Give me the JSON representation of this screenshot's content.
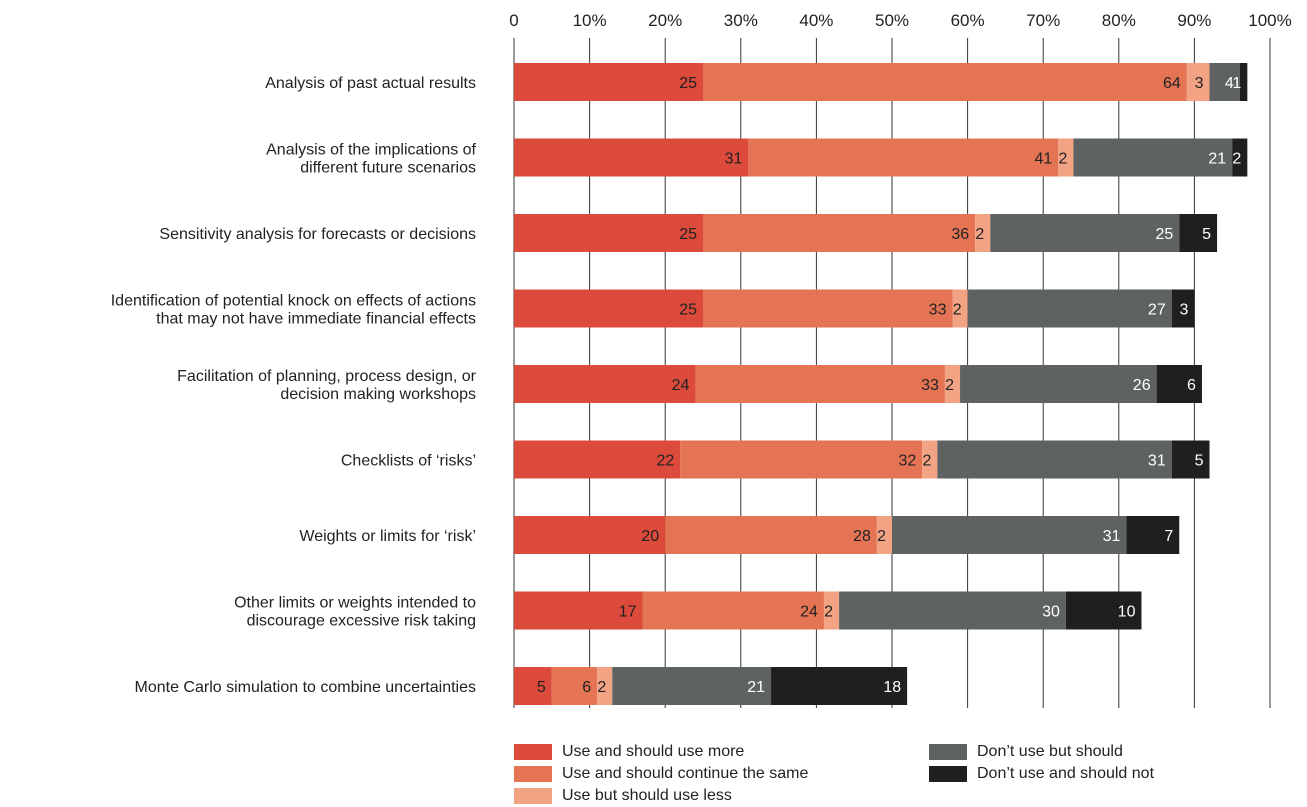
{
  "chart_data": {
    "type": "bar",
    "orientation": "horizontal",
    "stacked": true,
    "title": "",
    "xlabel": "",
    "ylabel": "",
    "xlim": [
      0,
      100
    ],
    "x_ticks": [
      0,
      10,
      20,
      30,
      40,
      50,
      60,
      70,
      80,
      90,
      100
    ],
    "x_tick_labels": [
      "0",
      "10%",
      "20%",
      "30%",
      "40%",
      "50%",
      "60%",
      "70%",
      "80%",
      "90%",
      "100%"
    ],
    "grid": true,
    "legend_position": "bottom",
    "categories": [
      [
        "Analysis of past actual results"
      ],
      [
        "Analysis of the implications of",
        "different future scenarios"
      ],
      [
        "Sensitivity analysis for forecasts or decisions"
      ],
      [
        "Identification of potential knock on effects of actions",
        "that may not have immediate financial effects"
      ],
      [
        "Facilitation of planning, process design, or",
        "decision making workshops"
      ],
      [
        "Checklists of ‘risks’"
      ],
      [
        "Weights or limits for ‘risk’"
      ],
      [
        "Other limits or weights intended to",
        "discourage excessive risk taking"
      ],
      [
        "Monte Carlo simulation to combine uncertainties"
      ]
    ],
    "series": [
      {
        "name": "Use and should use more",
        "color": "#db4a3a",
        "label_color": "#222222",
        "values": [
          25,
          31,
          25,
          25,
          24,
          22,
          20,
          17,
          5
        ]
      },
      {
        "name": "Use and should continue the same",
        "color": "#e57455",
        "label_color": "#222222",
        "values": [
          64,
          41,
          36,
          33,
          33,
          32,
          28,
          24,
          6
        ]
      },
      {
        "name": "Use but should use less",
        "color": "#f2a384",
        "label_color": "#222222",
        "values": [
          3,
          2,
          2,
          2,
          2,
          2,
          2,
          2,
          2
        ]
      },
      {
        "name": "Don’t use but should",
        "color": "#5f6263",
        "label_color": "#ffffff",
        "values": [
          4,
          21,
          25,
          27,
          26,
          31,
          31,
          30,
          21
        ]
      },
      {
        "name": "Don’t use and should not",
        "color": "#1f1f1f",
        "label_color": "#ffffff",
        "values": [
          1,
          2,
          5,
          3,
          6,
          5,
          7,
          10,
          18
        ]
      }
    ]
  }
}
